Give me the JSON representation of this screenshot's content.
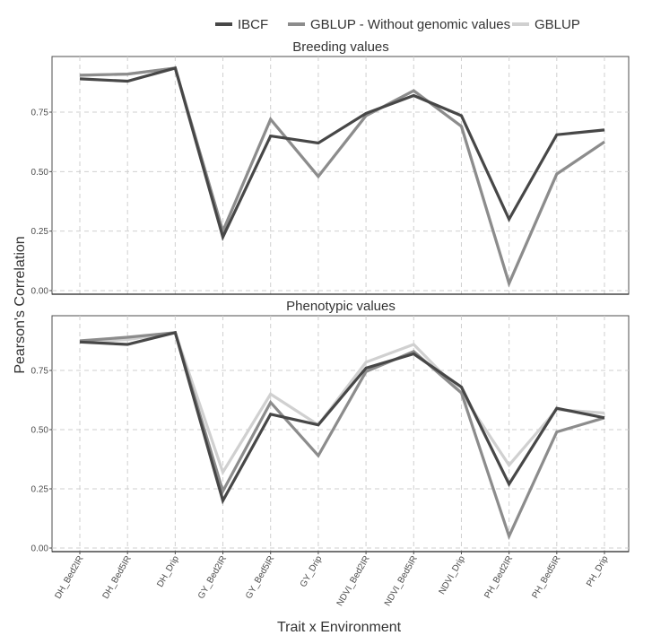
{
  "chart_data": {
    "type": "line",
    "xlabel": "Trait x Environment",
    "ylabel": "Pearson's Correlation",
    "legend": {
      "position": "top",
      "entries": [
        {
          "name": "IBCF",
          "color": "#474747"
        },
        {
          "name": "GBLUP - Without genomic values",
          "color": "#8c8c8c"
        },
        {
          "name": "GBLUP",
          "color": "#d0d0d0"
        }
      ]
    },
    "categories": [
      "DH_Bed2IR",
      "DH_Bed5IR",
      "DH_Drip",
      "GY_Bed2IR",
      "GY_Bed5IR",
      "GY_Drip",
      "NDVI_Bed2IR",
      "NDVI_Bed5IR",
      "NDVI_Drip",
      "PH_Bed2IR",
      "PH_Bed5IR",
      "PH_Drip"
    ],
    "yticks": [
      "0.00",
      "0.25",
      "0.50",
      "0.75"
    ],
    "ylim": [
      0,
      1
    ],
    "grid": true,
    "panels": [
      {
        "title": "Breeding values",
        "series": [
          {
            "name": "IBCF",
            "values": [
              0.89,
              0.88,
              0.935,
              0.225,
              0.65,
              0.62,
              0.745,
              0.82,
              0.735,
              0.3,
              0.655,
              0.675
            ]
          },
          {
            "name": "GBLUP - Without genomic values",
            "values": [
              0.905,
              0.91,
              0.935,
              0.25,
              0.72,
              0.48,
              0.735,
              0.84,
              0.69,
              0.03,
              0.49,
              0.625
            ]
          },
          {
            "name": "GBLUP",
            "values": [
              0.905,
              0.91,
              0.935,
              0.25,
              0.72,
              0.48,
              0.735,
              0.84,
              0.69,
              0.03,
              0.49,
              0.625
            ]
          }
        ]
      },
      {
        "title": "Phenotypic values",
        "series": [
          {
            "name": "IBCF",
            "values": [
              0.87,
              0.86,
              0.91,
              0.2,
              0.565,
              0.52,
              0.76,
              0.82,
              0.68,
              0.27,
              0.59,
              0.55
            ]
          },
          {
            "name": "GBLUP - Without genomic values",
            "values": [
              0.875,
              0.89,
              0.91,
              0.24,
              0.615,
              0.39,
              0.745,
              0.83,
              0.655,
              0.05,
              0.49,
              0.55
            ]
          },
          {
            "name": "GBLUP",
            "values": [
              0.87,
              0.88,
              0.91,
              0.32,
              0.65,
              0.52,
              0.785,
              0.86,
              0.655,
              0.35,
              0.585,
              0.57
            ]
          }
        ]
      }
    ]
  }
}
